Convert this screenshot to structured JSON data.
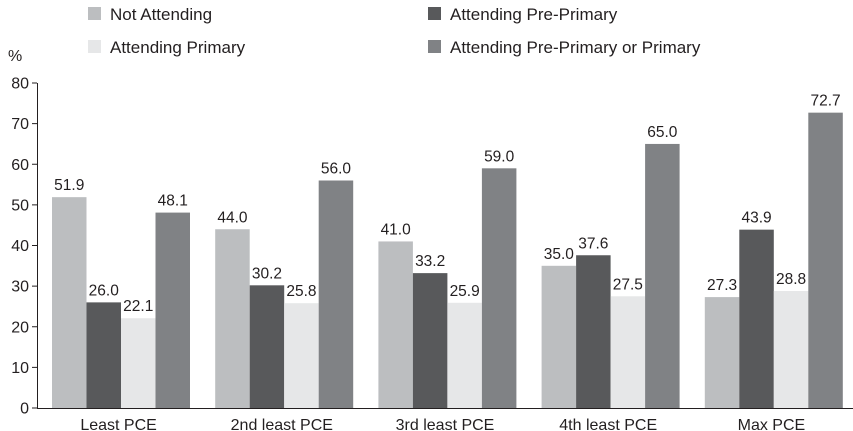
{
  "chart_data": {
    "type": "bar",
    "ylabel": "%",
    "ylim": [
      0,
      80
    ],
    "yticks": [
      0,
      10,
      20,
      30,
      40,
      50,
      60,
      70,
      80
    ],
    "grid": false,
    "legend_position": "top",
    "categories": [
      "Least PCE",
      "2nd least PCE",
      "3rd least PCE",
      "4th least PCE",
      "Max PCE"
    ],
    "series": [
      {
        "name": "Not Attending",
        "color": "#bcbec0",
        "values": [
          51.9,
          44.0,
          41.0,
          35.0,
          27.3
        ]
      },
      {
        "name": "Attending Pre-Primary",
        "color": "#58595b",
        "values": [
          26.0,
          30.2,
          33.2,
          37.6,
          43.9
        ]
      },
      {
        "name": "Attending Primary",
        "color": "#e6e7e8",
        "values": [
          22.1,
          25.8,
          25.9,
          27.5,
          28.8
        ]
      },
      {
        "name": "Attending Pre-Primary or Primary",
        "color": "#808285",
        "values": [
          48.1,
          56.0,
          59.0,
          65.0,
          72.7
        ]
      }
    ]
  }
}
